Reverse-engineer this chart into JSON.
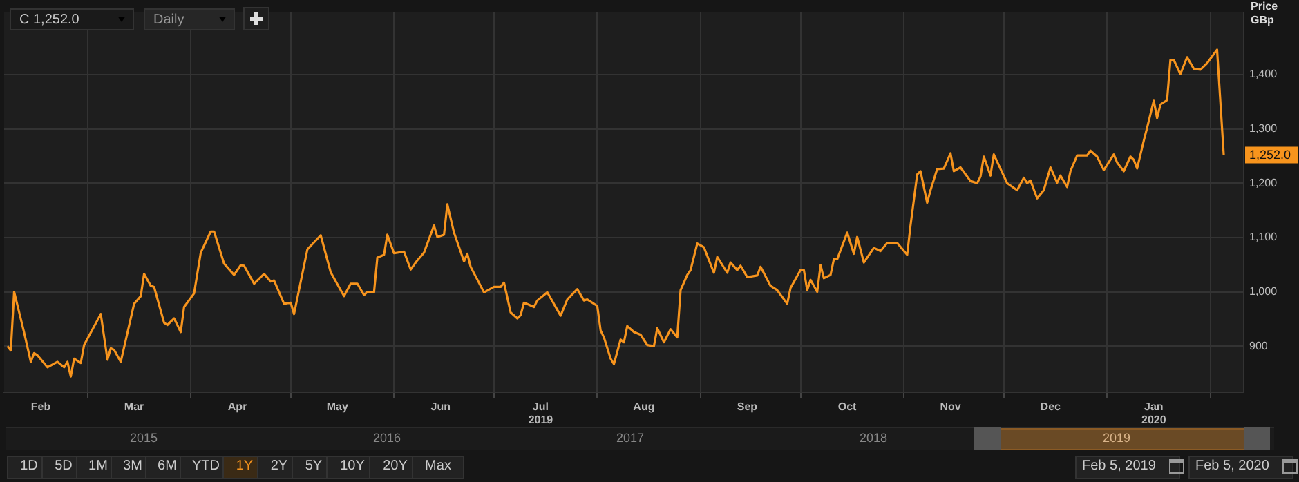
{
  "chart_data": {
    "type": "line",
    "ylabel": "Price GBp",
    "color": "#f7941d",
    "marker": "none",
    "grid": true,
    "x": [
      "2019-02-05",
      "2019-02-06",
      "2019-02-07",
      "2019-02-10",
      "2019-02-12",
      "2019-02-13",
      "2019-02-14",
      "2019-02-17",
      "2019-02-20",
      "2019-02-22",
      "2019-02-23",
      "2019-02-24",
      "2019-02-25",
      "2019-02-27",
      "2019-02-28",
      "2019-03-05",
      "2019-03-07",
      "2019-03-08",
      "2019-03-09",
      "2019-03-11",
      "2019-03-15",
      "2019-03-17",
      "2019-03-18",
      "2019-03-20",
      "2019-03-21",
      "2019-03-24",
      "2019-03-25",
      "2019-03-27",
      "2019-03-29",
      "2019-03-30",
      "2019-04-02",
      "2019-04-04",
      "2019-04-05",
      "2019-04-07",
      "2019-04-08",
      "2019-04-11",
      "2019-04-14",
      "2019-04-16",
      "2019-04-17",
      "2019-04-20",
      "2019-04-23",
      "2019-04-25",
      "2019-04-26",
      "2019-04-29",
      "2019-05-01",
      "2019-05-02",
      "2019-05-06",
      "2019-05-10",
      "2019-05-13",
      "2019-05-17",
      "2019-05-19",
      "2019-05-21",
      "2019-05-23",
      "2019-05-24",
      "2019-05-26",
      "2019-05-27",
      "2019-05-29",
      "2019-05-30",
      "2019-06-01",
      "2019-06-04",
      "2019-06-06",
      "2019-06-08",
      "2019-06-10",
      "2019-06-13",
      "2019-06-14",
      "2019-06-16",
      "2019-06-17",
      "2019-06-19",
      "2019-06-22",
      "2019-06-23",
      "2019-06-24",
      "2019-06-28",
      "2019-07-01",
      "2019-07-03",
      "2019-07-04",
      "2019-07-06",
      "2019-07-08",
      "2019-07-09",
      "2019-07-10",
      "2019-07-13",
      "2019-07-14",
      "2019-07-17",
      "2019-07-21",
      "2019-07-23",
      "2019-07-26",
      "2019-07-28",
      "2019-07-29",
      "2019-08-01",
      "2019-08-02",
      "2019-08-03",
      "2019-08-05",
      "2019-08-06",
      "2019-08-08",
      "2019-08-09",
      "2019-08-10",
      "2019-08-12",
      "2019-08-14",
      "2019-08-16",
      "2019-08-18",
      "2019-08-19",
      "2019-08-21",
      "2019-08-23",
      "2019-08-25",
      "2019-08-26",
      "2019-08-28",
      "2019-08-29",
      "2019-08-31",
      "2019-09-02",
      "2019-09-05",
      "2019-09-06",
      "2019-09-09",
      "2019-09-10",
      "2019-09-12",
      "2019-09-13",
      "2019-09-15",
      "2019-09-18",
      "2019-09-19",
      "2019-09-22",
      "2019-09-24",
      "2019-09-27",
      "2019-09-28",
      "2019-10-01",
      "2019-10-02",
      "2019-10-03",
      "2019-10-04",
      "2019-10-06",
      "2019-10-07",
      "2019-10-08",
      "2019-10-10",
      "2019-10-11",
      "2019-10-12",
      "2019-10-15",
      "2019-10-17",
      "2019-10-18",
      "2019-10-20",
      "2019-10-23",
      "2019-10-25",
      "2019-10-27",
      "2019-10-30",
      "2019-11-02",
      "2019-11-03",
      "2019-11-05",
      "2019-11-06",
      "2019-11-08",
      "2019-11-09",
      "2019-11-11",
      "2019-11-13",
      "2019-11-15",
      "2019-11-16",
      "2019-11-18",
      "2019-11-21",
      "2019-11-23",
      "2019-11-24",
      "2019-11-25",
      "2019-11-27",
      "2019-11-28",
      "2019-12-02",
      "2019-12-05",
      "2019-12-07",
      "2019-12-08",
      "2019-12-09",
      "2019-12-11",
      "2019-12-13",
      "2019-12-15",
      "2019-12-17",
      "2019-12-18",
      "2019-12-20",
      "2019-12-21",
      "2019-12-23",
      "2019-12-26",
      "2019-12-27",
      "2019-12-29",
      "2019-12-31",
      "2020-01-03",
      "2020-01-04",
      "2020-01-06",
      "2020-01-08",
      "2020-01-09",
      "2020-01-10",
      "2020-01-12",
      "2020-01-13",
      "2020-01-15",
      "2020-01-16",
      "2020-01-17",
      "2020-01-19",
      "2020-01-20",
      "2020-01-21",
      "2020-01-23",
      "2020-01-25",
      "2020-01-27",
      "2020-01-29",
      "2020-01-31",
      "2020-02-03",
      "2020-02-05"
    ],
    "values": [
      900,
      892,
      1000,
      925,
      871,
      887,
      883,
      861,
      871,
      861,
      871,
      844,
      877,
      869,
      902,
      959,
      875,
      896,
      893,
      871,
      978,
      992,
      1033,
      1011,
      1009,
      943,
      939,
      951,
      926,
      972,
      997,
      1072,
      1085,
      1111,
      1111,
      1052,
      1031,
      1049,
      1048,
      1015,
      1033,
      1019,
      1021,
      978,
      980,
      959,
      1078,
      1104,
      1036,
      992,
      1015,
      1015,
      994,
      1000,
      999,
      1063,
      1068,
      1105,
      1071,
      1074,
      1041,
      1058,
      1072,
      1122,
      1101,
      1105,
      1161,
      1109,
      1056,
      1070,
      1046,
      999,
      1009,
      1009,
      1017,
      962,
      951,
      957,
      980,
      972,
      984,
      999,
      956,
      986,
      1005,
      984,
      986,
      974,
      929,
      916,
      877,
      867,
      912,
      907,
      937,
      926,
      921,
      902,
      900,
      933,
      907,
      931,
      916,
      1003,
      1031,
      1040,
      1089,
      1082,
      1035,
      1064,
      1035,
      1054,
      1040,
      1048,
      1027,
      1030,
      1046,
      1011,
      1003,
      978,
      1007,
      1040,
      1040,
      1003,
      1022,
      1000,
      1049,
      1025,
      1031,
      1060,
      1060,
      1109,
      1070,
      1101,
      1054,
      1081,
      1075,
      1090,
      1090,
      1068,
      1122,
      1216,
      1222,
      1164,
      1187,
      1226,
      1227,
      1255,
      1222,
      1229,
      1204,
      1200,
      1212,
      1249,
      1214,
      1253,
      1200,
      1187,
      1210,
      1200,
      1205,
      1172,
      1187,
      1229,
      1201,
      1214,
      1193,
      1222,
      1251,
      1251,
      1260,
      1249,
      1224,
      1253,
      1238,
      1222,
      1249,
      1243,
      1227,
      1278,
      1302,
      1352,
      1320,
      1345,
      1353,
      1427,
      1427,
      1401,
      1432,
      1411,
      1409,
      1421,
      1446,
      1252
    ],
    "xlim": [
      "2019-02-04",
      "2020-02-11"
    ],
    "xticks": [
      {
        "value": "2019-02-15",
        "label": "Feb"
      },
      {
        "value": "2019-03-01",
        "label": null
      },
      {
        "value": "2019-03-15",
        "label": "Mar"
      },
      {
        "value": "2019-04-01",
        "label": null
      },
      {
        "value": "2019-04-15",
        "label": "Apr"
      },
      {
        "value": "2019-05-01",
        "label": null
      },
      {
        "value": "2019-05-15",
        "label": "May"
      },
      {
        "value": "2019-06-01",
        "label": null
      },
      {
        "value": "2019-06-15",
        "label": "Jun"
      },
      {
        "value": "2019-07-01",
        "label": null
      },
      {
        "value": "2019-07-15",
        "label": "Jul 2019"
      },
      {
        "value": "2019-08-01",
        "label": null
      },
      {
        "value": "2019-08-15",
        "label": "Aug"
      },
      {
        "value": "2019-09-01",
        "label": null
      },
      {
        "value": "2019-09-15",
        "label": "Sep"
      },
      {
        "value": "2019-10-01",
        "label": null
      },
      {
        "value": "2019-10-15",
        "label": "Oct"
      },
      {
        "value": "2019-11-01",
        "label": null
      },
      {
        "value": "2019-11-15",
        "label": "Nov"
      },
      {
        "value": "2019-12-01",
        "label": null
      },
      {
        "value": "2019-12-15",
        "label": "Dec"
      },
      {
        "value": "2020-01-01",
        "label": null
      },
      {
        "value": "2020-01-15",
        "label": "Jan 2020"
      },
      {
        "value": "2020-02-01",
        "label": null
      }
    ],
    "ylim": [
      815,
      1515
    ],
    "yticks": [
      {
        "value": 900,
        "label": "900"
      },
      {
        "value": 1000,
        "label": "1,000"
      },
      {
        "value": 1100,
        "label": "1,100"
      },
      {
        "value": 1200,
        "label": "1,200"
      },
      {
        "value": 1300,
        "label": "1,300"
      },
      {
        "value": 1400,
        "label": "1,400"
      }
    ],
    "annotations": [
      {
        "text": "1,252.0",
        "x": "2020-02-05",
        "y": 1252
      },
      "C 1,252.0",
      "Daily",
      "2015",
      "2016",
      "2017",
      "2018",
      "2019",
      "1D",
      "5D",
      "1M",
      "3M",
      "6M",
      "YTD",
      "1Y",
      "2Y",
      "5Y",
      "10Y",
      "20Y",
      "Max",
      "Feb 5, 2019",
      "Feb 5, 2020"
    ]
  }
}
